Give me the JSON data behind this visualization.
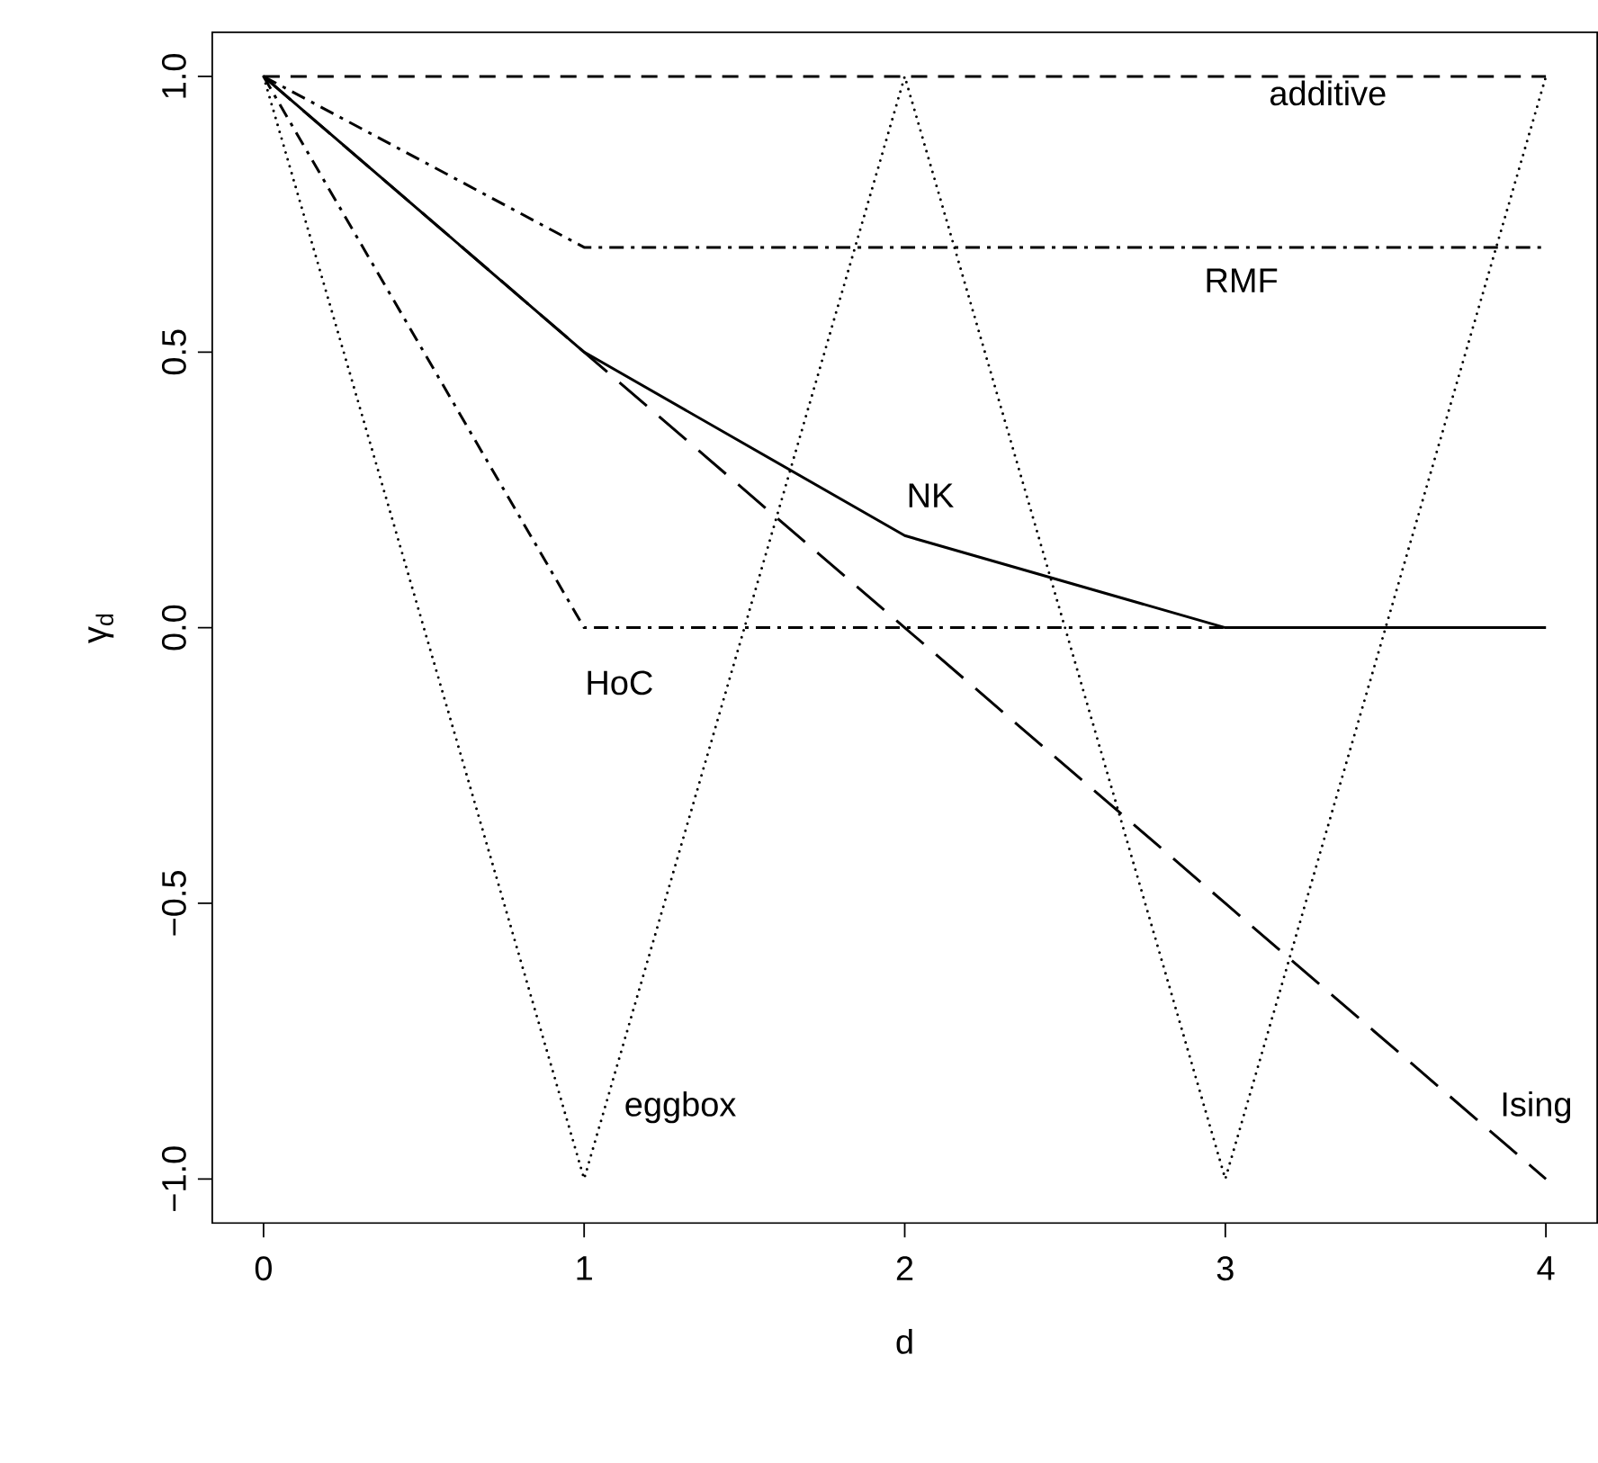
{
  "chart_data": {
    "type": "line",
    "xlabel": "d",
    "ylabel": "γ$_{d}$",
    "x": [
      0,
      1,
      2,
      3,
      4
    ],
    "series": [
      {
        "name": "eggbox",
        "color": "#000000",
        "line_style": "dotted",
        "values": [
          1,
          -1,
          1,
          -1,
          1
        ]
      },
      {
        "name": "additive",
        "color": "#000000",
        "line_style": "dashed",
        "values": [
          1,
          1,
          1,
          1,
          1
        ]
      },
      {
        "name": "RMF",
        "color": "#000000",
        "line_style": "dashdot",
        "values": [
          1,
          0.69,
          0.69,
          0.69,
          0.69
        ]
      },
      {
        "name": "NK",
        "color": "#000000",
        "line_style": "solid",
        "values": [
          1,
          0.5,
          0.167,
          0,
          0
        ]
      },
      {
        "name": "HoC",
        "color": "#000000",
        "line_style": "dashdot",
        "values": [
          1,
          0,
          0,
          0,
          0
        ]
      },
      {
        "name": "Ising",
        "color": "#000000",
        "line_style": "longdashed",
        "values": [
          1,
          0.5,
          0,
          -0.5,
          -1
        ]
      }
    ],
    "xlim": [
      -0.16,
      4.16
    ],
    "ylim": [
      -1.08,
      1.08
    ],
    "xticks": [
      0,
      1,
      2,
      3,
      4
    ],
    "yticks": [
      {
        "value": -1,
        "label": "−1.0"
      },
      {
        "value": -0.5,
        "label": "−0.5"
      },
      {
        "value": 0,
        "label": "0.0"
      },
      {
        "value": 0.5,
        "label": "0.5"
      },
      {
        "value": 1,
        "label": "1.0"
      }
    ],
    "grid": false,
    "marker": "none"
  }
}
